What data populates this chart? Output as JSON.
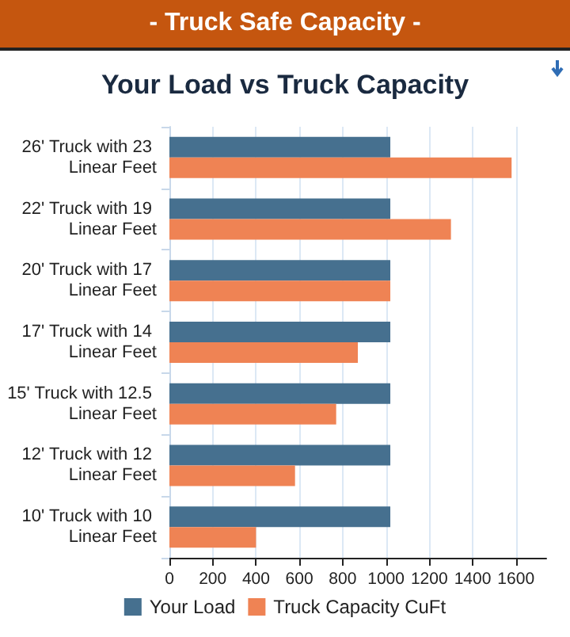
{
  "chart_data": {
    "type": "bar",
    "orientation": "horizontal",
    "title": "- Truck Safe Capacity -",
    "subtitle": "Your Load vs Truck Capacity",
    "categories": [
      "26' Truck with 23 Linear Feet",
      "22' Truck with 19 Linear Feet",
      "20' Truck with 17 Linear Feet",
      "17' Truck with 14 Linear Feet",
      "15' Truck with 12.5 Linear Feet",
      "12' Truck with 12 Linear Feet",
      "10' Truck with 10 Linear Feet"
    ],
    "series": [
      {
        "name": "Your Load",
        "color": "#46708f",
        "values": [
          1020,
          1020,
          1020,
          1020,
          1020,
          1020,
          1020
        ]
      },
      {
        "name": "Truck Capacity CuFt",
        "color": "#ef8354",
        "values": [
          1580,
          1300,
          1020,
          870,
          770,
          580,
          400
        ]
      }
    ],
    "xlim": [
      0,
      1740
    ],
    "xticks": [
      0,
      200,
      400,
      600,
      800,
      1000,
      1200,
      1400,
      1600
    ],
    "grid": "x",
    "legend": "bottom"
  }
}
